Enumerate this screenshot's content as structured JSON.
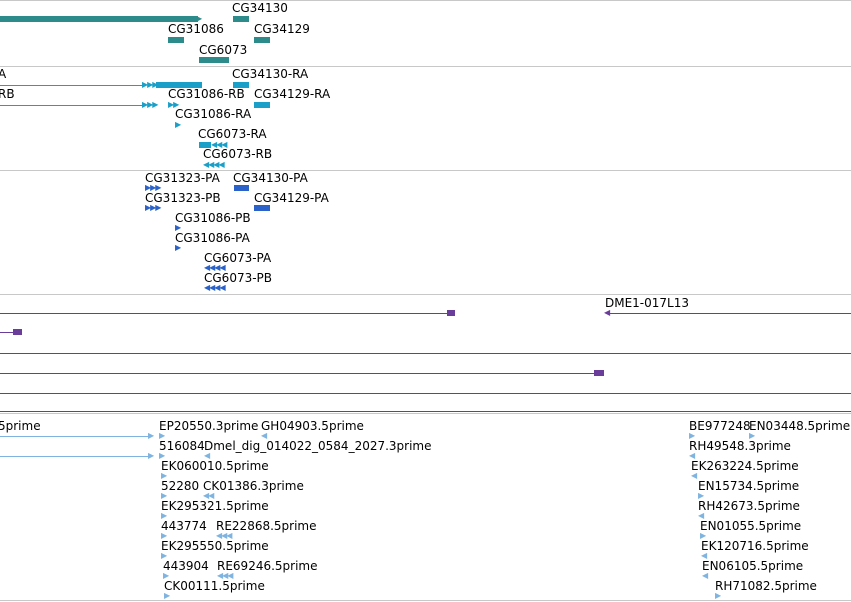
{
  "colors": {
    "gene": "#2e8b8b",
    "transcript": "#1aa0c8",
    "cds": "#2a62c9",
    "clone": "#6a3d9a",
    "est": "#7fb3e0",
    "separator": "#c8c8c8"
  },
  "tracks": {
    "genes": {
      "labels": [
        "CG34130",
        "CG31086",
        "CG34129",
        "CG6073"
      ]
    },
    "transcripts": {
      "labels": [
        "A",
        "RB",
        "CG34130-RA",
        "CG31086-RB",
        "CG34129-RA",
        "CG31086-RA",
        "CG6073-RA",
        "CG6073-RB"
      ]
    },
    "cds": {
      "labels": [
        "CG31323-PA",
        "CG34130-PA",
        "CG31323-PB",
        "CG34129-PA",
        "CG31086-PB",
        "CG31086-PA",
        "CG6073-PA",
        "CG6073-PB"
      ]
    },
    "clones": {
      "labels": [
        "DME1-017L13"
      ]
    },
    "ests": {
      "labels": [
        "5prime",
        "EP20550.3prime",
        "GH04903.5prime",
        "BE977248",
        "EN03448.5prime",
        "516084",
        "Dmel_dig_014022_0584_2027.3prime",
        "RH49548.3prime",
        "EK060010.5prime",
        "EK263224.5prime",
        "52280",
        "CK01386.3prime",
        "EN15734.5prime",
        "EK295321.5prime",
        "RH42673.5prime",
        "443774",
        "RE22868.5prime",
        "EN01055.5prime",
        "EK295550.5prime",
        "EK120716.5prime",
        "443904",
        "RE69246.5prime",
        "EN06105.5prime",
        "CK00111.5prime",
        "RH71082.5prime"
      ]
    }
  }
}
